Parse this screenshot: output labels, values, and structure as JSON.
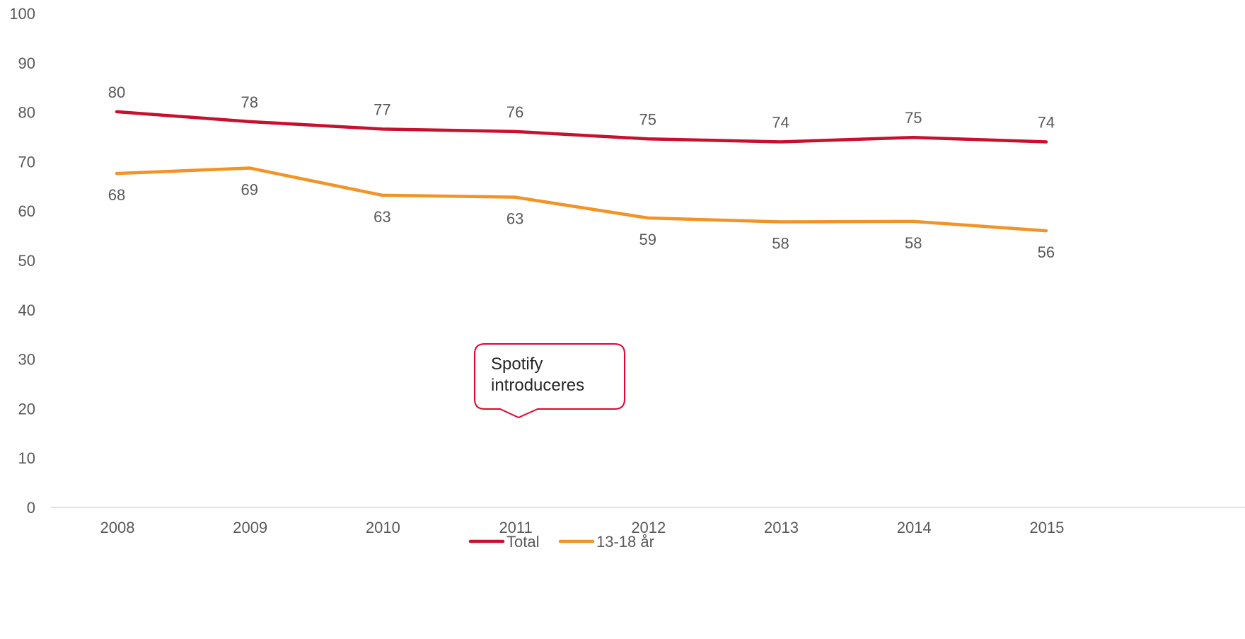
{
  "chart_data": {
    "type": "line",
    "categories": [
      "2008",
      "2009",
      "2010",
      "2011",
      "2012",
      "2013",
      "2014",
      "2015"
    ],
    "series": [
      {
        "name": "Total",
        "color": "#C8102E",
        "values": [
          80,
          78,
          77,
          76,
          75,
          74,
          75,
          74
        ],
        "plot_values": [
          80.1,
          78.1,
          76.6,
          76.1,
          74.6,
          74.0,
          74.9,
          74.0
        ],
        "label_position": "above"
      },
      {
        "name": "13-18 år",
        "color": "#F39325",
        "values": [
          68,
          69,
          63,
          63,
          59,
          58,
          58,
          56
        ],
        "plot_values": [
          67.6,
          68.7,
          63.2,
          62.8,
          58.6,
          57.8,
          57.9,
          56.0
        ],
        "label_position": "below"
      }
    ],
    "ylim": [
      0,
      100
    ],
    "yticks": [
      0,
      10,
      20,
      30,
      40,
      50,
      60,
      70,
      80,
      90,
      100
    ],
    "title": "",
    "xlabel": "",
    "ylabel": "",
    "grid": false,
    "legend_position": "bottom-center",
    "annotations": [
      {
        "text_lines": [
          "Spotify",
          "introduceres"
        ],
        "anchor_category": "2011",
        "border_color": "#E4032E"
      }
    ]
  }
}
